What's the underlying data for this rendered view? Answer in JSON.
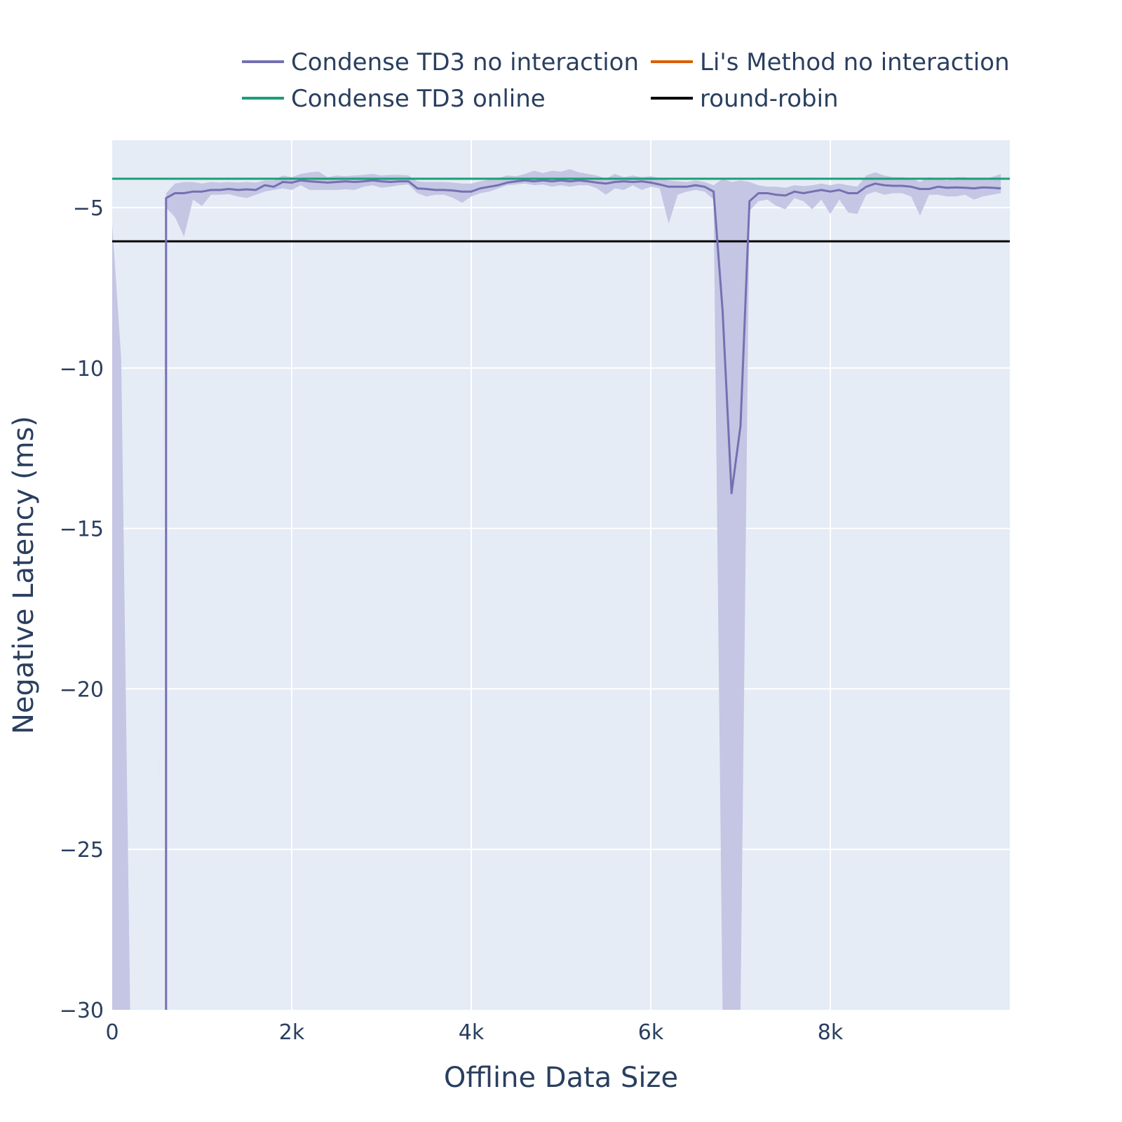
{
  "chart_data": {
    "type": "line",
    "xlabel": "Offline Data Size",
    "ylabel": "Negative Latency (ms)",
    "xlim": [
      0,
      10000
    ],
    "ylim": [
      -30,
      -2.9
    ],
    "xticks": [
      {
        "value": 0,
        "label": "0"
      },
      {
        "value": 2000,
        "label": "2k"
      },
      {
        "value": 4000,
        "label": "4k"
      },
      {
        "value": 6000,
        "label": "6k"
      },
      {
        "value": 8000,
        "label": "8k"
      }
    ],
    "yticks": [
      {
        "value": -5,
        "label": "−5"
      },
      {
        "value": -10,
        "label": "−10"
      },
      {
        "value": -15,
        "label": "−15"
      },
      {
        "value": -20,
        "label": "−20"
      },
      {
        "value": -25,
        "label": "−25"
      },
      {
        "value": -30,
        "label": "−30"
      }
    ],
    "grid": true,
    "legend_position": "top",
    "colors": {
      "plot_bg": "#e5ecf6",
      "grid": "#ffffff",
      "band": "#c4c6e3",
      "text": "#2a3f5f"
    },
    "legend": [
      {
        "label": "Condense TD3 no interaction",
        "color": "#7570b3"
      },
      {
        "label": "Li's Method no interaction",
        "color": "#d95f02"
      },
      {
        "label": "Condense TD3 online",
        "color": "#1b9e77"
      },
      {
        "label": "round-robin",
        "color": "#000000"
      }
    ],
    "series": [
      {
        "name": "Condense TD3 no interaction",
        "color": "#7570b3",
        "x": [
          600,
          700,
          800,
          900,
          1000,
          1100,
          1200,
          1300,
          1400,
          1500,
          1600,
          1700,
          1800,
          1900,
          2000,
          2100,
          2200,
          2300,
          2400,
          2500,
          2600,
          2700,
          2800,
          2900,
          3000,
          3100,
          3200,
          3300,
          3400,
          3500,
          3600,
          3700,
          3800,
          3900,
          4000,
          4100,
          4200,
          4300,
          4400,
          4500,
          4600,
          4700,
          4800,
          4900,
          5000,
          5100,
          5200,
          5300,
          5400,
          5500,
          5600,
          5700,
          5800,
          5900,
          6000,
          6100,
          6200,
          6300,
          6400,
          6500,
          6600,
          6700,
          6800,
          6900,
          7000,
          7100,
          7200,
          7300,
          7400,
          7500,
          7600,
          7700,
          7800,
          7900,
          8000,
          8100,
          8200,
          8300,
          8400,
          8500,
          8600,
          8700,
          8800,
          8900,
          9000,
          9100,
          9200,
          9300,
          9400,
          9500,
          9600,
          9700,
          9800,
          9900
        ],
        "y": [
          -4.7,
          -4.55,
          -4.55,
          -4.5,
          -4.5,
          -4.45,
          -4.45,
          -4.42,
          -4.45,
          -4.43,
          -4.45,
          -4.3,
          -4.35,
          -4.2,
          -4.22,
          -4.15,
          -4.18,
          -4.2,
          -4.22,
          -4.2,
          -4.18,
          -4.2,
          -4.18,
          -4.15,
          -4.18,
          -4.2,
          -4.18,
          -4.18,
          -4.4,
          -4.42,
          -4.45,
          -4.45,
          -4.47,
          -4.5,
          -4.5,
          -4.4,
          -4.35,
          -4.3,
          -4.22,
          -4.18,
          -4.15,
          -4.18,
          -4.15,
          -4.18,
          -4.15,
          -4.18,
          -4.15,
          -4.18,
          -4.22,
          -4.25,
          -4.2,
          -4.18,
          -4.2,
          -4.18,
          -4.22,
          -4.28,
          -4.35,
          -4.35,
          -4.35,
          -4.3,
          -4.35,
          -4.5,
          -8.2,
          -13.9,
          -11.8,
          -4.8,
          -4.55,
          -4.55,
          -4.6,
          -4.62,
          -4.5,
          -4.55,
          -4.5,
          -4.45,
          -4.5,
          -4.45,
          -4.55,
          -4.55,
          -4.35,
          -4.25,
          -4.3,
          -4.32,
          -4.32,
          -4.35,
          -4.42,
          -4.42,
          -4.35,
          -4.38,
          -4.37,
          -4.38,
          -4.4,
          -4.37,
          -4.38,
          -4.4
        ]
      },
      {
        "name": "Li's Method no interaction",
        "color": "#d95f02",
        "x": [],
        "y": []
      },
      {
        "name": "Condense TD3 online",
        "color": "#1b9e77",
        "x": [
          0,
          10000
        ],
        "y": [
          -4.1,
          -4.1
        ]
      },
      {
        "name": "round-robin",
        "color": "#000000",
        "x": [
          0,
          10000
        ],
        "y": [
          -6.05,
          -6.05
        ]
      }
    ],
    "band": {
      "series": "Condense TD3 no interaction",
      "x": [
        0,
        100,
        200,
        300,
        400,
        500,
        600,
        700,
        800,
        900,
        1000,
        1100,
        1200,
        1300,
        1400,
        1500,
        1600,
        1700,
        1800,
        1900,
        2000,
        2100,
        2200,
        2300,
        2400,
        2500,
        2600,
        2700,
        2800,
        2900,
        3000,
        3100,
        3200,
        3300,
        3400,
        3500,
        3600,
        3700,
        3800,
        3900,
        4000,
        4100,
        4200,
        4300,
        4400,
        4500,
        4600,
        4700,
        4800,
        4900,
        5000,
        5100,
        5200,
        5300,
        5400,
        5500,
        5600,
        5700,
        5800,
        5900,
        6000,
        6100,
        6200,
        6300,
        6400,
        6500,
        6600,
        6700,
        6800,
        6900,
        7000,
        7100,
        7200,
        7300,
        7400,
        7500,
        7600,
        7700,
        7800,
        7900,
        8000,
        8100,
        8200,
        8300,
        8400,
        8500,
        8600,
        8700,
        8800,
        8900,
        9000,
        9100,
        9200,
        9300,
        9400,
        9500,
        9600,
        9700,
        9800,
        9900
      ],
      "upper": [
        -5.5,
        -9.7,
        -30,
        -30,
        -30,
        -30,
        -4.55,
        -4.25,
        -4.2,
        -4.2,
        -4.25,
        -4.2,
        -4.22,
        -4.2,
        -4.22,
        -4.2,
        -4.22,
        -4.15,
        -4.15,
        -4.0,
        -4.05,
        -3.95,
        -3.9,
        -3.88,
        -4.05,
        -4.0,
        -4.02,
        -4.0,
        -3.98,
        -3.95,
        -4.0,
        -3.98,
        -3.98,
        -4.0,
        -4.18,
        -4.2,
        -4.2,
        -4.2,
        -4.22,
        -4.25,
        -4.25,
        -4.18,
        -4.12,
        -4.08,
        -4.0,
        -4.02,
        -3.95,
        -3.85,
        -3.92,
        -3.85,
        -3.88,
        -3.8,
        -3.9,
        -3.95,
        -4.0,
        -4.1,
        -3.95,
        -4.05,
        -4.0,
        -4.05,
        -4.02,
        -4.08,
        -4.15,
        -4.18,
        -4.2,
        -4.15,
        -4.2,
        -4.3,
        -4.1,
        -4.2,
        -4.15,
        -4.2,
        -4.3,
        -4.35,
        -4.35,
        -4.38,
        -4.3,
        -4.33,
        -4.3,
        -4.25,
        -4.3,
        -4.25,
        -4.3,
        -4.35,
        -4.0,
        -3.9,
        -4.0,
        -4.05,
        -4.05,
        -4.08,
        -4.2,
        -4.05,
        -4.1,
        -4.15,
        -4.05,
        -4.05,
        -4.1,
        -4.1,
        -4.05,
        -3.95
      ],
      "lower": [
        -30,
        -30,
        -30,
        -30,
        -30,
        -30,
        -5.0,
        -5.3,
        -5.9,
        -4.75,
        -4.95,
        -4.6,
        -4.6,
        -4.58,
        -4.65,
        -4.7,
        -4.6,
        -4.5,
        -4.45,
        -4.4,
        -4.45,
        -4.3,
        -4.45,
        -4.45,
        -4.45,
        -4.45,
        -4.43,
        -4.45,
        -4.35,
        -4.3,
        -4.38,
        -4.35,
        -4.3,
        -4.28,
        -4.55,
        -4.65,
        -4.6,
        -4.6,
        -4.7,
        -4.85,
        -4.65,
        -4.55,
        -4.5,
        -4.4,
        -4.3,
        -4.28,
        -4.25,
        -4.3,
        -4.28,
        -4.35,
        -4.3,
        -4.35,
        -4.3,
        -4.3,
        -4.4,
        -4.6,
        -4.4,
        -4.45,
        -4.3,
        -4.45,
        -4.35,
        -4.4,
        -5.5,
        -4.6,
        -4.5,
        -4.45,
        -4.5,
        -4.75,
        -30,
        -30,
        -30,
        -5.1,
        -4.8,
        -4.75,
        -4.95,
        -5.05,
        -4.7,
        -4.8,
        -5.05,
        -4.75,
        -5.2,
        -4.75,
        -5.15,
        -5.2,
        -4.6,
        -4.5,
        -4.6,
        -4.55,
        -4.55,
        -4.65,
        -5.25,
        -4.6,
        -4.6,
        -4.65,
        -4.65,
        -4.6,
        -4.75,
        -4.65,
        -4.6,
        -4.55
      ]
    }
  }
}
